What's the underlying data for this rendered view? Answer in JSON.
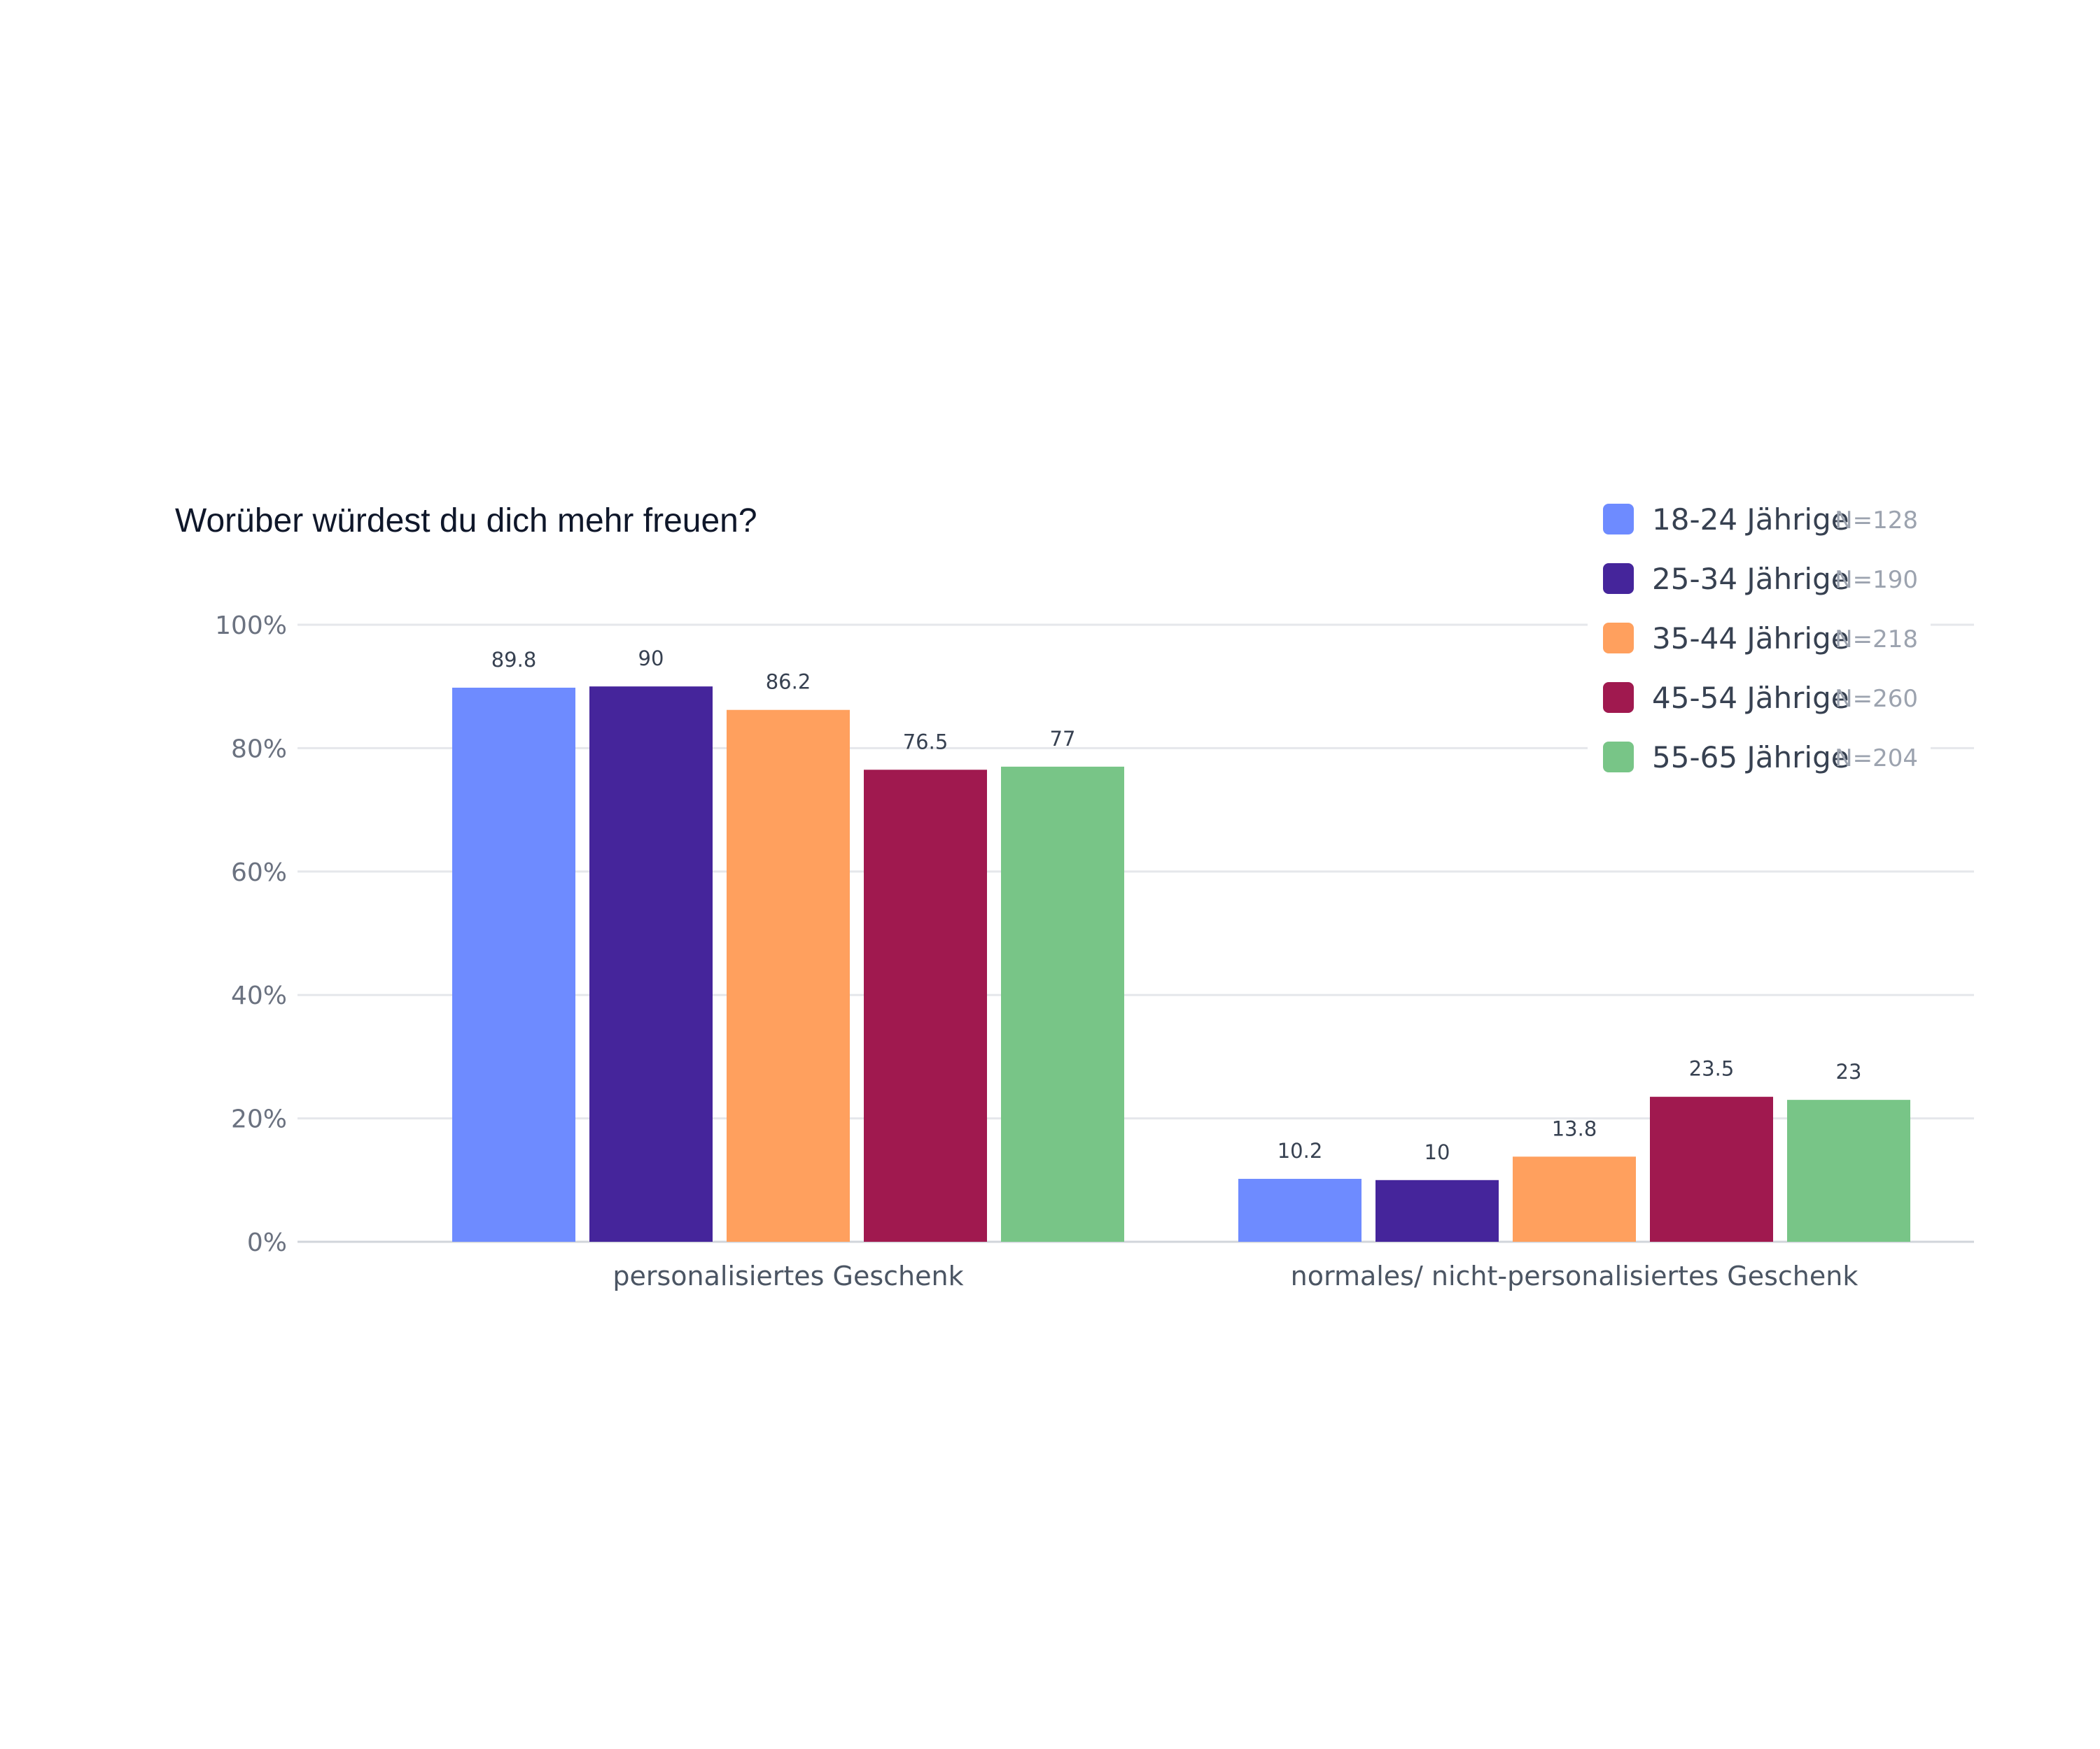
{
  "chart_data": {
    "type": "bar",
    "title": "Worüber würdest du dich mehr freuen?",
    "xlabel": "",
    "ylabel": "",
    "ylim": [
      0,
      100
    ],
    "yticks": [
      0,
      20,
      40,
      60,
      80,
      100
    ],
    "ytick_labels": [
      "0%",
      "20%",
      "40%",
      "60%",
      "80%",
      "100%"
    ],
    "grid": true,
    "legend_position": "top-right",
    "categories": [
      "personalisiertes Geschenk",
      "normales/ nicht-personalisiertes Geschenk"
    ],
    "series": [
      {
        "name": "18-24 Jährige",
        "n": "N=128",
        "color": "#6e8bff",
        "values": [
          89.8,
          10.2
        ],
        "labels": [
          "89.8",
          "10.2"
        ]
      },
      {
        "name": "25-34 Jährige",
        "n": "N=190",
        "color": "#45259b",
        "values": [
          90,
          10
        ],
        "labels": [
          "90",
          "10"
        ]
      },
      {
        "name": "35-44 Jährige",
        "n": "N=218",
        "color": "#ffa05e",
        "values": [
          86.2,
          13.8
        ],
        "labels": [
          "86.2",
          "13.8"
        ]
      },
      {
        "name": "45-54 Jährige",
        "n": "N=260",
        "color": "#a0194f",
        "values": [
          76.5,
          23.5
        ],
        "labels": [
          "76.5",
          "23.5"
        ]
      },
      {
        "name": "55-65 Jährige",
        "n": "N=204",
        "color": "#78c587",
        "values": [
          77,
          23
        ],
        "labels": [
          "77",
          "23"
        ]
      }
    ]
  }
}
